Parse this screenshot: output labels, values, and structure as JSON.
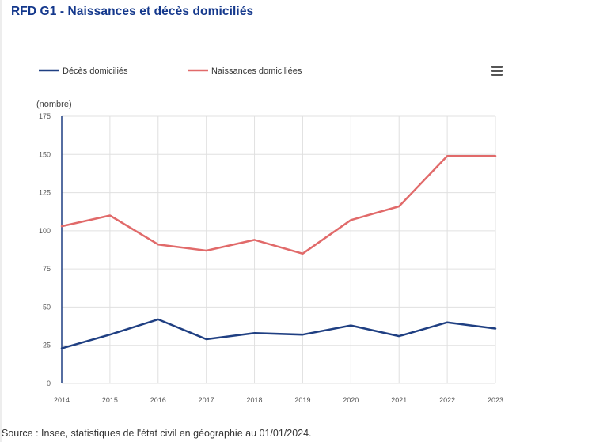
{
  "title": "RFD G1 - Naissances et décès domiciliés",
  "source": "Source : Insee, statistiques de l'état civil en géographie au 01/01/2024.",
  "menu_icon": "hamburger-menu-icon",
  "colors": {
    "deces": "#1f3f82",
    "naissances": "#e16a6a",
    "title": "#14388c",
    "grid": "#e0e0e0",
    "axis": "#1f3f82"
  },
  "chart_data": {
    "type": "line",
    "title": "RFD G1 - Naissances et décès domiciliés",
    "ylabel": "(nombre)",
    "xlabel": "",
    "ylim": [
      0,
      175
    ],
    "yticks": [
      0,
      25,
      50,
      75,
      100,
      125,
      150,
      175
    ],
    "x": [
      "2014",
      "2015",
      "2016",
      "2017",
      "2018",
      "2019",
      "2020",
      "2021",
      "2022",
      "2023"
    ],
    "series": [
      {
        "name": "Décès domiciliés",
        "color": "#1f3f82",
        "values": [
          23,
          32,
          42,
          29,
          33,
          32,
          38,
          31,
          40,
          36
        ]
      },
      {
        "name": "Naissances domiciliées",
        "color": "#e16a6a",
        "values": [
          103,
          110,
          91,
          87,
          94,
          85,
          107,
          116,
          149,
          149
        ]
      }
    ],
    "legend_position": "top-left",
    "grid": true
  }
}
